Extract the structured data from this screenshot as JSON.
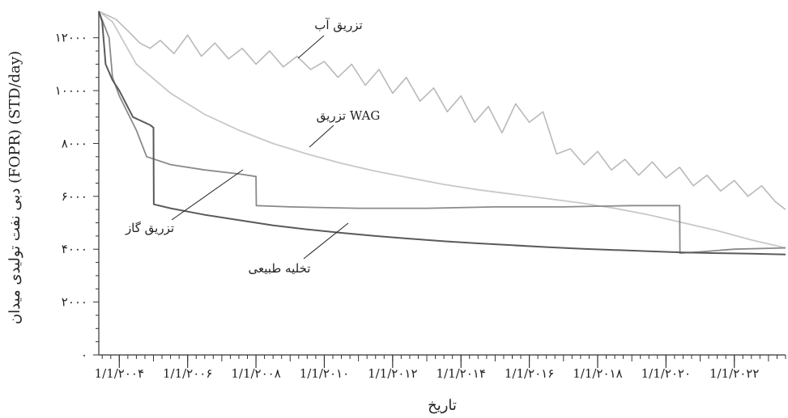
{
  "chart_data": {
    "type": "line",
    "xlabel": "تاریخ",
    "ylabel": "دبی نفت تولیدی میدان (FOPR) (STD/day)",
    "x_tick_labels": [
      "1/1/۲۰۰۴",
      "1/1/۲۰۰۶",
      "1/1/۲۰۰۸",
      "1/1/۲۰۱۰",
      "1/1/۲۰۱۲",
      "1/1/۲۰۱۴",
      "1/1/۲۰۱۶",
      "1/1/۲۰۱۸",
      "1/1/۲۰۲۰",
      "1/1/۲۰۲۲"
    ],
    "x_tick_years": [
      2004,
      2006,
      2008,
      2010,
      2012,
      2014,
      2016,
      2018,
      2020,
      2022
    ],
    "y_ticks": [
      0,
      2000,
      4000,
      6000,
      8000,
      10000,
      12000
    ],
    "y_tick_labels": [
      "۰",
      "۲۰۰۰",
      "۴۰۰۰",
      "۶۰۰۰",
      "۸۰۰۰",
      "۱۰۰۰۰",
      "۱۲۰۰۰"
    ],
    "xlim": [
      2003.4,
      2023.5
    ],
    "ylim": [
      0,
      13000
    ],
    "grid": false,
    "series": [
      {
        "name": "تزریق آب",
        "color": "#b9b9b9",
        "x": [
          2003.4,
          2003.9,
          2004.3,
          2004.6,
          2004.9,
          2005.2,
          2005.6,
          2006.0,
          2006.4,
          2006.8,
          2007.2,
          2007.6,
          2008.0,
          2008.4,
          2008.8,
          2009.2,
          2009.6,
          2010.0,
          2010.4,
          2010.8,
          2011.2,
          2011.6,
          2012.0,
          2012.4,
          2012.8,
          2013.2,
          2013.6,
          2014.0,
          2014.4,
          2014.8,
          2015.2,
          2015.6,
          2016.0,
          2016.4,
          2016.8,
          2017.2,
          2017.6,
          2018.0,
          2018.4,
          2018.8,
          2019.2,
          2019.6,
          2020.0,
          2020.4,
          2020.8,
          2021.2,
          2021.6,
          2022.0,
          2022.4,
          2022.8,
          2023.2,
          2023.5
        ],
        "y": [
          13000,
          12700,
          12200,
          11800,
          11600,
          11900,
          11400,
          12100,
          11300,
          11800,
          11200,
          11600,
          11000,
          11500,
          10900,
          11300,
          10800,
          11100,
          10500,
          11000,
          10200,
          10800,
          9900,
          10500,
          9600,
          10100,
          9200,
          9800,
          8800,
          9400,
          8400,
          9500,
          8800,
          9200,
          7600,
          7800,
          7200,
          7700,
          7000,
          7400,
          6800,
          7300,
          6700,
          7100,
          6400,
          6800,
          6200,
          6600,
          6000,
          6400,
          5800,
          5500
        ]
      },
      {
        "name": "تزریق WAG",
        "color": "#c8c8c8",
        "x": [
          2003.4,
          2003.8,
          2004.5,
          2005.5,
          2006.5,
          2007.5,
          2008.5,
          2009.5,
          2010.5,
          2011.5,
          2012.5,
          2013.5,
          2014.5,
          2015.5,
          2016.5,
          2017.5,
          2018.5,
          2019.5,
          2020.5,
          2021.5,
          2022.5,
          2023.5
        ],
        "y": [
          13000,
          12600,
          11000,
          9900,
          9100,
          8500,
          8000,
          7600,
          7250,
          6950,
          6700,
          6450,
          6250,
          6080,
          5920,
          5750,
          5550,
          5300,
          5000,
          4700,
          4350,
          4050
        ]
      },
      {
        "name": "تزریق گاز",
        "color": "#8a8a8a",
        "x": [
          2003.4,
          2003.7,
          2003.8,
          2004.0,
          2004.5,
          2004.8,
          2005.5,
          2006.5,
          2007.5,
          2008.0,
          2008.01,
          2009.0,
          2011.0,
          2013.0,
          2015.0,
          2017.0,
          2019.0,
          2020.4,
          2020.41,
          2021.0,
          2022.0,
          2023.5
        ],
        "y": [
          13000,
          12000,
          10500,
          9800,
          8500,
          7500,
          7200,
          7000,
          6850,
          6750,
          5650,
          5600,
          5550,
          5550,
          5600,
          5600,
          5650,
          5650,
          3850,
          3900,
          4000,
          4050
        ]
      },
      {
        "name": "تخلیه طبیعی",
        "color": "#5a5a5a",
        "x": [
          2003.4,
          2003.5,
          2003.6,
          2003.8,
          2004.0,
          2004.4,
          2004.9,
          2005.0,
          2005.01,
          2005.5,
          2006.5,
          2007.5,
          2008.5,
          2009.5,
          2010.5,
          2011.5,
          2012.5,
          2013.5,
          2014.5,
          2015.5,
          2016.5,
          2017.5,
          2018.5,
          2019.5,
          2020.5,
          2021.5,
          2022.5,
          2023.5
        ],
        "y": [
          13000,
          12600,
          11000,
          10400,
          10000,
          9000,
          8700,
          8600,
          5700,
          5550,
          5300,
          5100,
          4900,
          4750,
          4620,
          4500,
          4400,
          4300,
          4220,
          4150,
          4080,
          4020,
          3970,
          3920,
          3880,
          3850,
          3830,
          3800
        ]
      }
    ],
    "annotations": [
      {
        "text": "تزریق آب",
        "series": "تزریق آب"
      },
      {
        "text": "تزریق WAG",
        "series": "تزریق WAG"
      },
      {
        "text": "تزریق گاز",
        "series": "تزریق گاز"
      },
      {
        "text": "تخلیه طبیعی",
        "series": "تخلیه طبیعی"
      }
    ]
  }
}
